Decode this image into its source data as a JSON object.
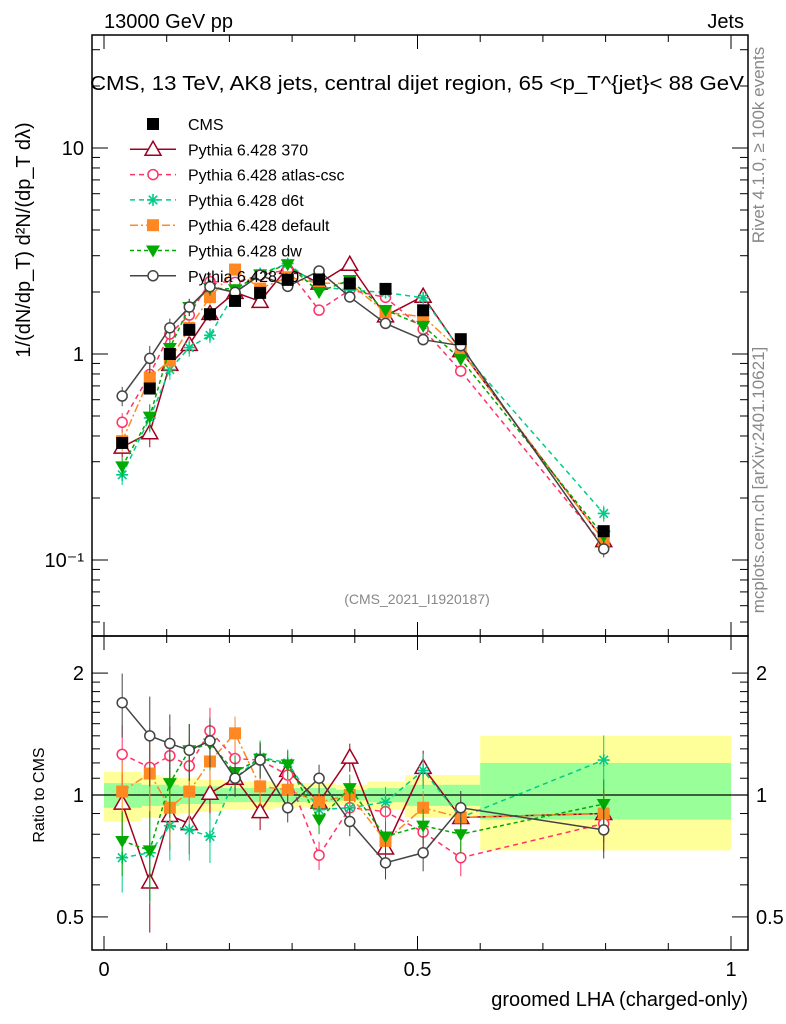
{
  "header": {
    "left": "13000 GeV pp",
    "right": "Jets"
  },
  "side_labels": {
    "rivet": "Rivet 4.1.0, ≥ 100k events",
    "mcplots": "mcplots.cern.ch [arXiv:2401.10621]"
  },
  "chart_data": {
    "type": "line",
    "title": "CMS, 13 TeV, AK8 jets, central dijet region, 65 <p_T^{jet}< 88 GeV",
    "analysis": "(CMS_2021_I1920187)",
    "xlabel": "groomed LHA (charged-only)",
    "ylabel": "1/(dN/dp_T) d²N/(dp_T dλ)",
    "ratio_ylabel": "Ratio to CMS",
    "xlim": [
      -0.02,
      1.03
    ],
    "ylim": [
      0.043,
      35
    ],
    "ratio_ylim": [
      0.415,
      2.47
    ],
    "yscale": "log",
    "x_ticks": [
      {
        "v": 0,
        "label": "0"
      },
      {
        "v": 0.5,
        "label": "0.5"
      },
      {
        "v": 1,
        "label": "1"
      }
    ],
    "y_ticks": [
      {
        "v": 10,
        "label": "10"
      },
      {
        "v": 1,
        "label": "1"
      },
      {
        "v": 0.1,
        "label": "10⁻¹"
      }
    ],
    "ratio_ticks": [
      {
        "v": 2,
        "label": "2"
      },
      {
        "v": 1,
        "label": "1"
      },
      {
        "v": 0.5,
        "label": "0.5"
      }
    ],
    "x": [
      0.029,
      0.073,
      0.105,
      0.136,
      0.169,
      0.209,
      0.249,
      0.293,
      0.343,
      0.392,
      0.449,
      0.509,
      0.569,
      0.797
    ],
    "bin_edges": [
      0,
      0.06,
      0.09,
      0.12,
      0.15,
      0.19,
      0.23,
      0.27,
      0.32,
      0.37,
      0.42,
      0.48,
      0.54,
      0.6,
      1.0
    ],
    "cms": {
      "name": "CMS",
      "values": [
        0.37,
        0.68,
        1.0,
        1.31,
        1.56,
        1.81,
        1.98,
        2.29,
        2.3,
        2.2,
        2.07,
        1.63,
        1.18,
        0.138
      ],
      "color": "#000000",
      "band_outer": [
        0.14,
        0.12,
        0.11,
        0.1,
        0.09,
        0.08,
        0.08,
        0.07,
        0.07,
        0.06,
        0.08,
        0.12,
        0.12,
        0.4
      ],
      "band_inner": [
        0.07,
        0.06,
        0.06,
        0.05,
        0.05,
        0.04,
        0.04,
        0.04,
        0.04,
        0.03,
        0.04,
        0.06,
        0.06,
        0.2
      ]
    },
    "legend_position": "top-left",
    "series": [
      {
        "name": "Pythia 6.428 370",
        "color": "#a00020",
        "marker": "tri-open",
        "dash": "",
        "ratio": [
          0.955,
          0.61,
          0.89,
          0.85,
          1.01,
          1.1,
          0.91,
          1.15,
          0.96,
          1.24,
          0.74,
          1.17,
          0.88,
          0.9
        ]
      },
      {
        "name": "Pythia 6.428 atlas-csc",
        "color": "#ff3366",
        "marker": "circle-open",
        "dash": "5,4",
        "ratio": [
          1.26,
          1.17,
          1.25,
          1.18,
          1.44,
          1.23,
          1.22,
          1.12,
          0.71,
          0.93,
          0.91,
          0.81,
          0.7,
          0.85
        ]
      },
      {
        "name": "Pythia 6.428 d6t",
        "color": "#00cc88",
        "marker": "star",
        "dash": "5,4",
        "ratio": [
          0.7,
          0.72,
          0.84,
          0.82,
          0.79,
          1.1,
          1.24,
          1.2,
          0.92,
          0.93,
          0.96,
          1.15,
          0.88,
          1.22
        ]
      },
      {
        "name": "Pythia 6.428 default",
        "color": "#ff8822",
        "marker": "square",
        "dash": "8,3,2,3",
        "ratio": [
          1.02,
          1.13,
          0.93,
          1.02,
          1.21,
          1.42,
          1.05,
          1.03,
          0.96,
          1.0,
          0.77,
          0.93,
          0.88,
          0.9
        ]
      },
      {
        "name": "Pythia 6.428 dw",
        "color": "#00aa00",
        "marker": "tri-down",
        "dash": "4,3",
        "ratio": [
          0.77,
          0.73,
          1.07,
          1.29,
          1.34,
          1.14,
          1.23,
          1.19,
          0.87,
          1.04,
          0.79,
          0.84,
          0.8,
          0.95
        ]
      },
      {
        "name": "Pythia 6.428 p0",
        "color": "#444444",
        "marker": "circle-open",
        "dash": "",
        "ratio": [
          1.69,
          1.4,
          1.34,
          1.29,
          1.36,
          1.1,
          1.22,
          0.93,
          1.1,
          0.86,
          0.68,
          0.72,
          0.93,
          0.82
        ]
      }
    ],
    "mc_rel_err": [
      0.18,
      0.25,
      0.18,
      0.16,
      0.14,
      0.1,
      0.1,
      0.08,
      0.08,
      0.08,
      0.09,
      0.1,
      0.1,
      0.15
    ]
  }
}
